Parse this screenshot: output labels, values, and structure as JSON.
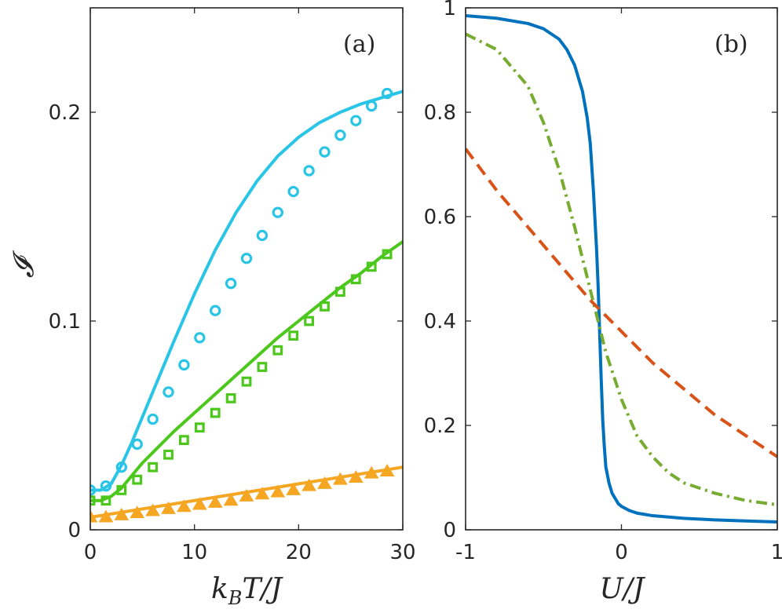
{
  "chart_data": [
    {
      "type": "line",
      "panel": "(a)",
      "xlabel": "k_B T / J",
      "ylabel": "𝓘",
      "xlim": [
        0,
        30
      ],
      "ylim": [
        0,
        0.25
      ],
      "xticks": [
        0,
        10,
        20,
        30
      ],
      "xtick_labels": [
        "0",
        "10",
        "20",
        "30"
      ],
      "yticks": [
        0,
        0.1,
        0.2
      ],
      "ytick_labels": [
        "0",
        "0.1",
        "0.2"
      ],
      "series": [
        {
          "name": "cyan-curve",
          "color": "#29c5e6",
          "style": "solid",
          "x": [
            0,
            1,
            2,
            3,
            4,
            5,
            6,
            8,
            10,
            12,
            14,
            16,
            18,
            20,
            22,
            24,
            26,
            28,
            30
          ],
          "y": [
            0.019,
            0.019,
            0.022,
            0.031,
            0.042,
            0.054,
            0.066,
            0.09,
            0.113,
            0.134,
            0.152,
            0.167,
            0.179,
            0.188,
            0.195,
            0.2,
            0.204,
            0.207,
            0.21
          ]
        },
        {
          "name": "cyan-circles",
          "color": "#29c5e6",
          "marker": "circle",
          "x": [
            0,
            1.5,
            3,
            4.5,
            6,
            7.5,
            9,
            10.5,
            12,
            13.5,
            15,
            16.5,
            18,
            19.5,
            21,
            22.5,
            24,
            25.5,
            27,
            28.5
          ],
          "y": [
            0.019,
            0.021,
            0.03,
            0.041,
            0.053,
            0.066,
            0.079,
            0.092,
            0.105,
            0.118,
            0.13,
            0.141,
            0.152,
            0.162,
            0.172,
            0.181,
            0.189,
            0.196,
            0.203,
            0.209
          ]
        },
        {
          "name": "green-curve",
          "color": "#4cc81c",
          "style": "solid",
          "x": [
            0,
            1,
            2,
            3,
            4,
            5,
            6,
            8,
            10,
            12,
            14,
            16,
            18,
            20,
            22,
            24,
            26,
            28,
            30
          ],
          "y": [
            0.014,
            0.014,
            0.016,
            0.02,
            0.026,
            0.032,
            0.037,
            0.047,
            0.056,
            0.065,
            0.074,
            0.083,
            0.092,
            0.1,
            0.108,
            0.116,
            0.123,
            0.131,
            0.138
          ]
        },
        {
          "name": "green-squares",
          "color": "#4cc81c",
          "marker": "square",
          "x": [
            0,
            1.5,
            3,
            4.5,
            6,
            7.5,
            9,
            10.5,
            12,
            13.5,
            15,
            16.5,
            18,
            19.5,
            21,
            22.5,
            24,
            25.5,
            27,
            28.5
          ],
          "y": [
            0.014,
            0.014,
            0.019,
            0.024,
            0.03,
            0.036,
            0.043,
            0.049,
            0.056,
            0.063,
            0.071,
            0.078,
            0.086,
            0.093,
            0.1,
            0.107,
            0.114,
            0.12,
            0.126,
            0.132
          ]
        },
        {
          "name": "orange-curve",
          "color": "#f5a623",
          "style": "solid",
          "x": [
            0,
            30
          ],
          "y": [
            0.006,
            0.03
          ]
        },
        {
          "name": "orange-triangles",
          "color": "#f5a623",
          "marker": "triangle",
          "x": [
            0,
            1.5,
            3,
            4.5,
            6,
            7.5,
            9,
            10.5,
            12,
            13.5,
            15,
            16.5,
            18,
            19.5,
            21,
            22.5,
            24,
            25.5,
            27,
            28.5
          ],
          "y": [
            0.006,
            0.006,
            0.007,
            0.008,
            0.009,
            0.01,
            0.011,
            0.012,
            0.013,
            0.014,
            0.016,
            0.017,
            0.018,
            0.019,
            0.021,
            0.022,
            0.024,
            0.025,
            0.027,
            0.028
          ]
        }
      ]
    },
    {
      "type": "line",
      "panel": "(b)",
      "xlabel": "U / J",
      "ylabel": "",
      "xlim": [
        -1,
        1
      ],
      "ylim": [
        0,
        1
      ],
      "xticks": [
        -1,
        0,
        1
      ],
      "xtick_labels": [
        "-1",
        "0",
        "1"
      ],
      "yticks": [
        0,
        0.2,
        0.4,
        0.6,
        0.8,
        1
      ],
      "ytick_labels": [
        "0",
        "0.2",
        "0.4",
        "0.6",
        "0.8",
        "1"
      ],
      "series": [
        {
          "name": "blue-solid",
          "color": "#0072bd",
          "style": "solid",
          "x": [
            -1,
            -0.8,
            -0.6,
            -0.5,
            -0.4,
            -0.35,
            -0.3,
            -0.25,
            -0.22,
            -0.2,
            -0.18,
            -0.16,
            -0.15,
            -0.14,
            -0.13,
            -0.12,
            -0.11,
            -0.1,
            -0.08,
            -0.06,
            -0.04,
            -0.02,
            0,
            0.05,
            0.1,
            0.2,
            0.4,
            0.6,
            0.8,
            1
          ],
          "y": [
            0.985,
            0.98,
            0.97,
            0.96,
            0.94,
            0.92,
            0.89,
            0.84,
            0.79,
            0.74,
            0.65,
            0.54,
            0.47,
            0.38,
            0.29,
            0.21,
            0.16,
            0.12,
            0.09,
            0.07,
            0.06,
            0.05,
            0.045,
            0.037,
            0.032,
            0.027,
            0.022,
            0.019,
            0.017,
            0.015
          ]
        },
        {
          "name": "green-dashdot",
          "color": "#77ac30",
          "style": "dashdot",
          "x": [
            -1,
            -0.8,
            -0.6,
            -0.5,
            -0.4,
            -0.3,
            -0.2,
            -0.1,
            0,
            0.1,
            0.2,
            0.3,
            0.4,
            0.6,
            0.8,
            1
          ],
          "y": [
            0.95,
            0.92,
            0.85,
            0.78,
            0.69,
            0.58,
            0.46,
            0.34,
            0.25,
            0.18,
            0.14,
            0.11,
            0.09,
            0.07,
            0.056,
            0.048
          ]
        },
        {
          "name": "orange-dashed",
          "color": "#d95319",
          "style": "dashed",
          "x": [
            -1,
            -0.8,
            -0.6,
            -0.4,
            -0.2,
            0,
            0.2,
            0.4,
            0.6,
            0.8,
            1
          ],
          "y": [
            0.73,
            0.65,
            0.58,
            0.51,
            0.44,
            0.38,
            0.32,
            0.27,
            0.22,
            0.18,
            0.14
          ]
        }
      ]
    }
  ]
}
